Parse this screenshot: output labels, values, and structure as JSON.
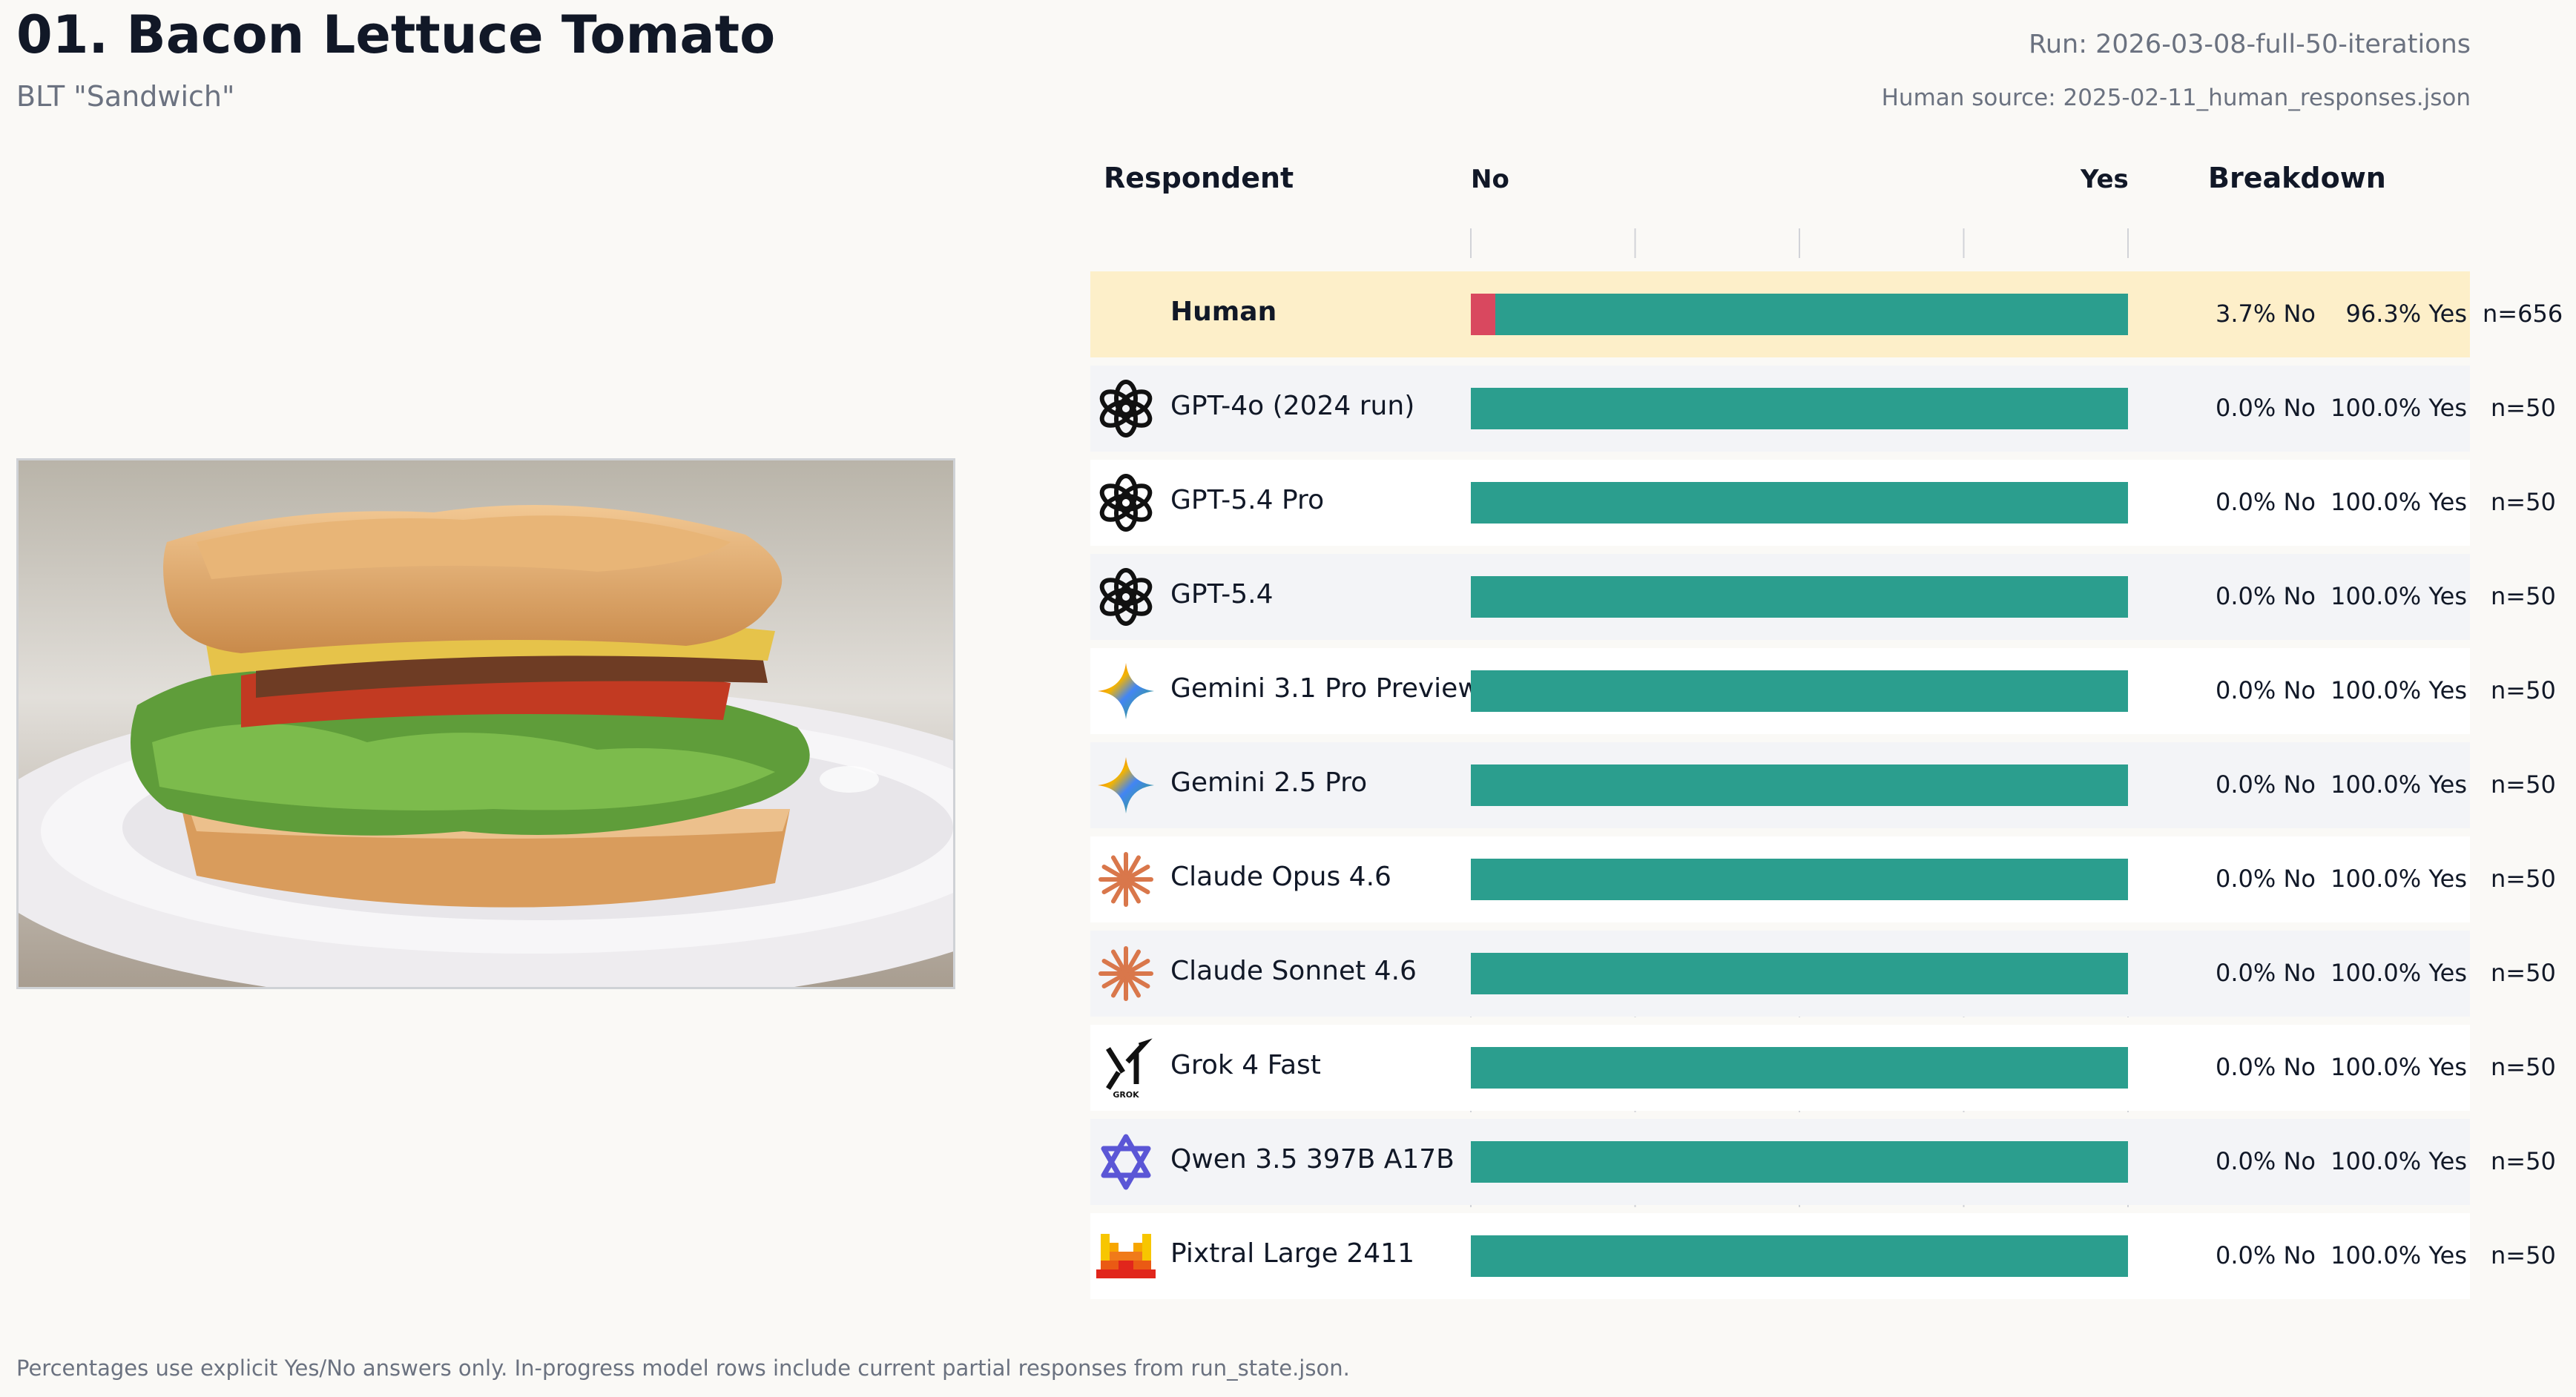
{
  "header": {
    "title": "01. Bacon Lettuce Tomato",
    "subtitle": "BLT \"Sandwich\"",
    "run": "Run: 2026-03-08-full-50-iterations",
    "human_source": "Human source: 2025-02-11_human_responses.json"
  },
  "columns": {
    "respondent": "Respondent",
    "no": "No",
    "yes": "Yes",
    "breakdown": "Breakdown"
  },
  "footnote": "Percentages use explicit Yes/No answers only. In-progress model rows include current partial responses from run_state.json.",
  "colors": {
    "no": "#d9485f",
    "yes": "#2b9e8e",
    "human_row": "#fdefc9"
  },
  "chart_data": {
    "type": "bar",
    "stacked": true,
    "orientation": "horizontal",
    "xlim": [
      0,
      100
    ],
    "categories": [
      "Human",
      "GPT-4o (2024 run)",
      "GPT-5.4 Pro",
      "GPT-5.4",
      "Gemini 3.1 Pro Preview",
      "Gemini 2.5 Pro",
      "Claude Opus 4.6",
      "Claude Sonnet 4.6",
      "Grok 4 Fast",
      "Qwen 3.5 397B A17B",
      "Pixtral Large 2411"
    ],
    "series": [
      {
        "name": "No",
        "values": [
          3.7,
          0,
          0,
          0,
          0,
          0,
          0,
          0,
          0,
          0,
          0
        ]
      },
      {
        "name": "Yes",
        "values": [
          96.3,
          100,
          100,
          100,
          100,
          100,
          100,
          100,
          100,
          100,
          100
        ]
      }
    ],
    "rows": [
      {
        "name": "Human",
        "icon": "none",
        "no": 3.7,
        "yes": 96.3,
        "no_label": "3.7% No",
        "yes_label": "96.3% Yes",
        "n_label": "n=656"
      },
      {
        "name": "GPT-4o (2024 run)",
        "icon": "openai-icon",
        "no": 0,
        "yes": 100,
        "no_label": "0.0% No",
        "yes_label": "100.0% Yes",
        "n_label": "n=50"
      },
      {
        "name": "GPT-5.4 Pro",
        "icon": "openai-icon",
        "no": 0,
        "yes": 100,
        "no_label": "0.0% No",
        "yes_label": "100.0% Yes",
        "n_label": "n=50"
      },
      {
        "name": "GPT-5.4",
        "icon": "openai-icon",
        "no": 0,
        "yes": 100,
        "no_label": "0.0% No",
        "yes_label": "100.0% Yes",
        "n_label": "n=50"
      },
      {
        "name": "Gemini 3.1 Pro Preview",
        "icon": "gemini-icon",
        "no": 0,
        "yes": 100,
        "no_label": "0.0% No",
        "yes_label": "100.0% Yes",
        "n_label": "n=50"
      },
      {
        "name": "Gemini 2.5 Pro",
        "icon": "gemini-icon",
        "no": 0,
        "yes": 100,
        "no_label": "0.0% No",
        "yes_label": "100.0% Yes",
        "n_label": "n=50"
      },
      {
        "name": "Claude Opus 4.6",
        "icon": "claude-icon",
        "no": 0,
        "yes": 100,
        "no_label": "0.0% No",
        "yes_label": "100.0% Yes",
        "n_label": "n=50"
      },
      {
        "name": "Claude Sonnet 4.6",
        "icon": "claude-icon",
        "no": 0,
        "yes": 100,
        "no_label": "0.0% No",
        "yes_label": "100.0% Yes",
        "n_label": "n=50"
      },
      {
        "name": "Grok 4 Fast",
        "icon": "grok-icon",
        "no": 0,
        "yes": 100,
        "no_label": "0.0% No",
        "yes_label": "100.0% Yes",
        "n_label": "n=50"
      },
      {
        "name": "Qwen 3.5 397B A17B",
        "icon": "qwen-icon",
        "no": 0,
        "yes": 100,
        "no_label": "0.0% No",
        "yes_label": "100.0% Yes",
        "n_label": "n=50"
      },
      {
        "name": "Pixtral Large 2411",
        "icon": "mistral-icon",
        "no": 0,
        "yes": 100,
        "no_label": "0.0% No",
        "yes_label": "100.0% Yes",
        "n_label": "n=50"
      }
    ]
  },
  "icons": {
    "grok_text": "GROK"
  }
}
